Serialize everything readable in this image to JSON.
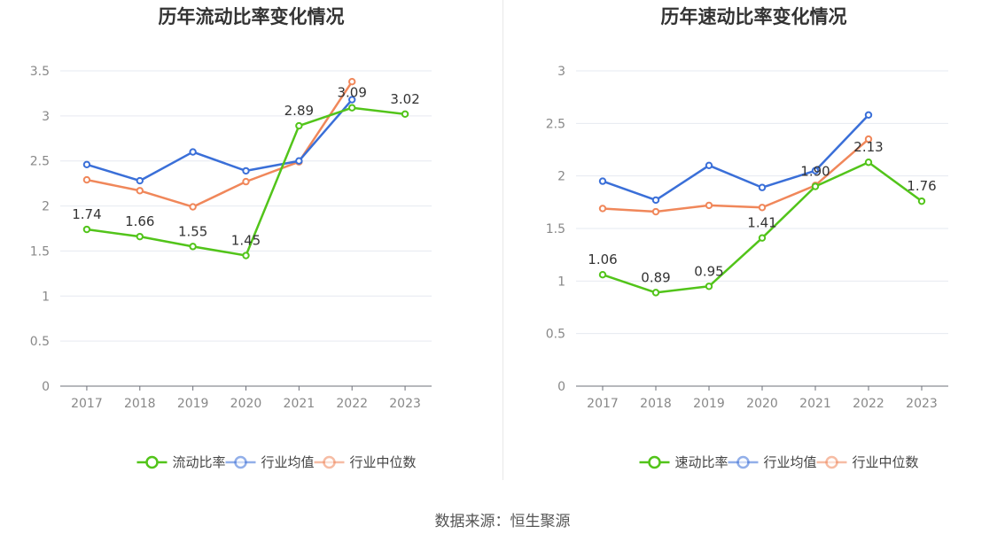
{
  "footer": "数据来源：恒生聚源",
  "chart_data": [
    {
      "type": "line",
      "title": "历年流动比率变化情况",
      "categories": [
        "2017",
        "2018",
        "2019",
        "2020",
        "2021",
        "2022",
        "2023"
      ],
      "ylim": [
        0,
        3.5
      ],
      "yticks": [
        0,
        0.5,
        1,
        1.5,
        2,
        2.5,
        3,
        3.5
      ],
      "grid": true,
      "legend_position": "bottom",
      "series": [
        {
          "name": "流动比率",
          "color": "#52c41a",
          "values": [
            1.74,
            1.66,
            1.55,
            1.45,
            2.89,
            3.09,
            3.02
          ],
          "labels": [
            "1.74",
            "1.66",
            "1.55",
            "1.45",
            "2.89",
            "3.09",
            "3.02"
          ],
          "label_pos": [
            "above",
            "above",
            "above",
            "above",
            "above",
            "above",
            "above"
          ]
        },
        {
          "name": "行业均值",
          "color": "#3a6fd8",
          "values": [
            2.46,
            2.28,
            2.6,
            2.39,
            2.5,
            3.18,
            null
          ]
        },
        {
          "name": "行业中位数",
          "color": "#f0875a",
          "values": [
            2.29,
            2.17,
            1.99,
            2.27,
            2.49,
            3.38,
            null
          ]
        }
      ]
    },
    {
      "type": "line",
      "title": "历年速动比率变化情况",
      "categories": [
        "2017",
        "2018",
        "2019",
        "2020",
        "2021",
        "2022",
        "2023"
      ],
      "ylim": [
        0,
        3
      ],
      "yticks": [
        0,
        0.5,
        1,
        1.5,
        2,
        2.5,
        3
      ],
      "grid": true,
      "legend_position": "bottom",
      "series": [
        {
          "name": "速动比率",
          "color": "#52c41a",
          "values": [
            1.06,
            0.89,
            0.95,
            1.41,
            1.9,
            2.13,
            1.76
          ],
          "labels": [
            "1.06",
            "0.89",
            "0.95",
            "1.41",
            "1.90",
            "2.13",
            "1.76"
          ],
          "label_pos": [
            "above",
            "above",
            "above",
            "above",
            "above",
            "above",
            "above"
          ]
        },
        {
          "name": "行业均值",
          "color": "#3a6fd8",
          "values": [
            1.95,
            1.77,
            2.1,
            1.89,
            2.05,
            2.58,
            null
          ]
        },
        {
          "name": "行业中位数",
          "color": "#f0875a",
          "values": [
            1.69,
            1.66,
            1.72,
            1.7,
            1.91,
            2.35,
            null
          ]
        }
      ]
    }
  ]
}
